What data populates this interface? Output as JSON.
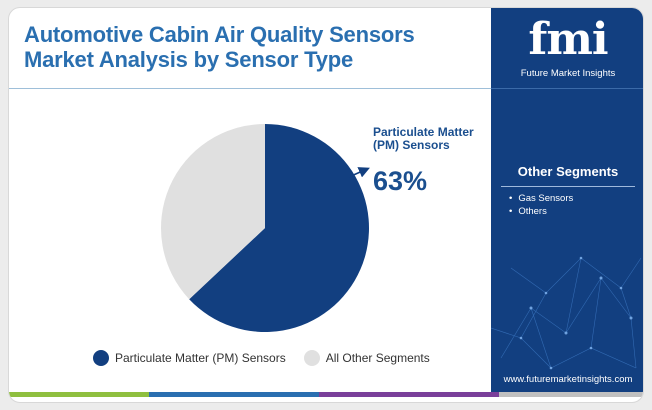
{
  "title_lines": [
    "Automotive Cabin Air Quality Sensors",
    "Market Analysis by Sensor Type"
  ],
  "callout": {
    "label": "Particulate Matter (PM) Sensors",
    "value": "63%"
  },
  "colors": {
    "title": "#2a6fb0",
    "primary_slice": "#123f80",
    "other_slice": "#e0e0e0",
    "side_panel": "#123f80",
    "bar_segments": [
      "#8fbf3f",
      "#2a6fb0",
      "#7a3f9a",
      "#c0c0c0"
    ]
  },
  "chart_data": {
    "type": "pie",
    "categories": [
      "Particulate Matter (PM) Sensors",
      "All Other Segments"
    ],
    "values": [
      63,
      37
    ],
    "unit": "%",
    "legend": "bottom"
  },
  "side_panel": {
    "logo": "fmi",
    "logo_subtitle": "Future Market Insights",
    "segments_heading": "Other Segments",
    "segments": [
      "Gas Sensors",
      "Others"
    ],
    "website": "www.futuremarketinsights.com"
  }
}
